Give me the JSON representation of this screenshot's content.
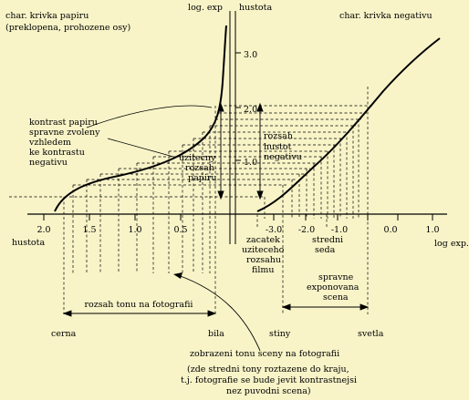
{
  "labels": {
    "paper_curve_title_1": "char. krivka papiru",
    "paper_curve_title_2": "(preklopena, prohozene osy)",
    "log_exp_top": "log. exp",
    "hustota_top": "hustota",
    "negative_curve_title": "char. krivka negativu",
    "contrast_1": "kontrast papiru",
    "contrast_2": "spravne zvoleny",
    "contrast_3": "vzhledem",
    "contrast_4": "ke kontrastu",
    "contrast_5": "negativu",
    "useful_paper_1": "uzitecny",
    "useful_paper_2": "rozsah",
    "useful_paper_3": "papiru",
    "useful_neg_1": "rozsah",
    "useful_neg_2": "hustot",
    "useful_neg_3": "negativu",
    "hustota_axis": "hustota",
    "log_exp_axis": "log exp.",
    "start_1": "zacatek",
    "start_2": "uziteceho",
    "start_3": "rozsahu",
    "start_4": "filmu",
    "mid_1": "stredni",
    "mid_2": "seda",
    "tone_range": "rozsah tonu na fotografii",
    "exposed_1": "spravne",
    "exposed_2": "exponovana",
    "exposed_3": "scena",
    "black": "cerna",
    "white": "bila",
    "shadows": "stiny",
    "lights": "svetla",
    "mapping_title": "zobrazeni tonu sceny na fotografii",
    "mapping_note_1": "(zde stredni tony roztazene do kraju,",
    "mapping_note_2": "t.j. fotografie se bude jevit kontrastnejsi",
    "mapping_note_3": "nez puvodni scena)"
  },
  "paper_axis_ticks": [
    "2.0",
    "1.5",
    "1.0",
    "0.5"
  ],
  "log_exp_ticks": [
    "-3.0",
    "-2.0",
    "-1.0",
    "0.0",
    "1.0"
  ],
  "density_ticks": [
    "1.0",
    "2.0",
    "3.0"
  ]
}
